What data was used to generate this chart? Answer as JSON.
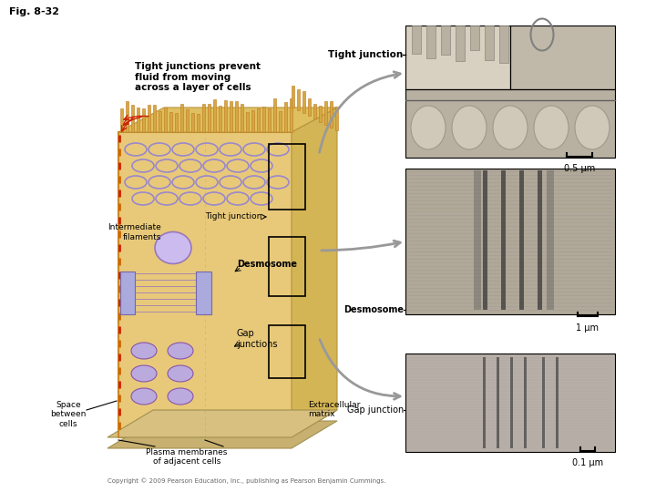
{
  "title": "Fig. 8-32",
  "bg_color": "#ffffff",
  "main_label": "Tight junctions prevent\nfluid from moving\nacross a layer of cells",
  "labels": {
    "tight_junction_top": "Tight junction",
    "tight_junction_mid": "Tight junction",
    "intermediate_filaments": "Intermediate\nfilaments",
    "desmosome": "Desmosome",
    "gap_junctions": "Gap\njunctions",
    "space_between": "Space\nbetween\ncells",
    "plasma_membranes": "Plasma membranes\nof adjacent cells",
    "extracellular": "Extracellular\nmatrix",
    "gap_junction_label": "Gap junction",
    "desmosome_label": "Desmosome"
  },
  "scale_bars": {
    "top": "0.5 μm",
    "mid": "1 μm",
    "bot": "0.1 μm"
  },
  "copyright": "Copyright © 2009 Pearson Education, Inc., publishing as Pearson Benjamin Cummings.",
  "cell_color": "#e8c97a",
  "cell_dark": "#c8a855",
  "cell_side": "#d4b555",
  "microvilli_color": "#d4a843",
  "junction_network_color": "#9988cc",
  "desmosome_color": "#aaaadd",
  "gap_junction_color": "#bbaadd",
  "filament_color": "#9988bb",
  "base_color": "#c8b070",
  "base_top_color": "#d8c080"
}
